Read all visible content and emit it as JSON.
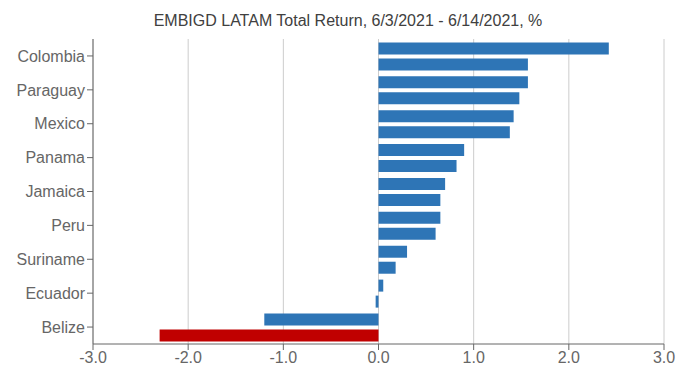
{
  "chart_data": {
    "type": "bar",
    "title": "EMBIGD LATAM Total Return, 6/3/2021 - 6/14/2021, %",
    "orientation": "horizontal",
    "categories": [
      "Colombia",
      "Paraguay",
      "Mexico",
      "Panama",
      "Jamaica",
      "Peru",
      "Suriname",
      "Ecuador",
      "Belize"
    ],
    "series": [
      {
        "values": [
          1.57,
          1.48,
          1.38,
          0.82,
          0.65,
          0.6,
          0.18,
          -0.03,
          -2.3
        ],
        "colors": [
          "#2e75b6",
          "#2e75b6",
          "#2e75b6",
          "#2e75b6",
          "#2e75b6",
          "#2e75b6",
          "#2e75b6",
          "#2e75b6",
          "#c00000"
        ]
      },
      {
        "values": [
          2.42,
          1.57,
          1.42,
          0.9,
          0.7,
          0.65,
          0.3,
          0.05,
          -1.2
        ],
        "color": "#2e75b6"
      }
    ],
    "xlim": [
      -3.0,
      3.0
    ],
    "xticks": [
      {
        "value": -3.0,
        "label": "-3.0"
      },
      {
        "value": -2.0,
        "label": "-2.0"
      },
      {
        "value": -1.0,
        "label": "-1.0"
      },
      {
        "value": 0.0,
        "label": "0.0"
      },
      {
        "value": 1.0,
        "label": "1.0"
      },
      {
        "value": 2.0,
        "label": "2.0"
      },
      {
        "value": 3.0,
        "label": "3.0"
      }
    ],
    "grid": true
  }
}
